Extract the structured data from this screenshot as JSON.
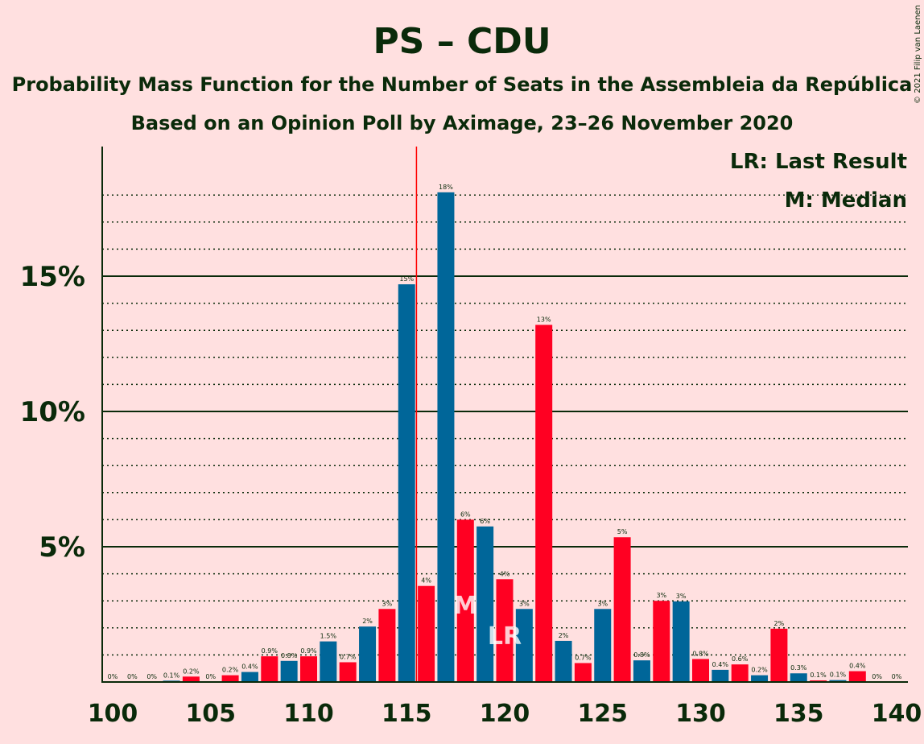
{
  "title": "PS – CDU",
  "subtitle1": "Probability Mass Function for the Number of Seats in the Assembleia da República",
  "subtitle2": "Based on an Opinion Poll by Aximage, 23–26 November 2020",
  "copyright": "© 2021 Filip van Laenen",
  "legend": {
    "lr": "LR: Last Result",
    "m": "M: Median"
  },
  "colors": {
    "background": "#ffe0e0",
    "blue": "#006699",
    "red": "#ff0022",
    "text": "#0a2a0a",
    "last_result_line": "#ff0000"
  },
  "markers": {
    "median_seat": 118,
    "median_label": "M",
    "last_result_seat": 120,
    "last_result_label": "LR",
    "last_result_line_x": 115.5
  },
  "chart_data": {
    "type": "bar",
    "xlabel": "",
    "ylabel": "",
    "xlim": [
      100,
      140
    ],
    "ylim": [
      0,
      19.5
    ],
    "x_ticks": [
      100,
      105,
      110,
      115,
      120,
      125,
      130,
      135,
      140
    ],
    "y_ticks": [
      {
        "value": 5,
        "label": "5%"
      },
      {
        "value": 10,
        "label": "10%"
      },
      {
        "value": 15,
        "label": "15%"
      }
    ],
    "minor_gridlines": [
      1,
      2,
      3,
      4,
      6,
      7,
      8,
      9,
      11,
      12,
      13,
      14,
      16,
      17,
      18
    ],
    "bars": [
      {
        "seats": 100,
        "value": 0.0,
        "label": "0%"
      },
      {
        "seats": 101,
        "value": 0.0,
        "label": "0%"
      },
      {
        "seats": 102,
        "value": 0.0,
        "label": "0%"
      },
      {
        "seats": 103,
        "value": 0.05,
        "label": "0.1%"
      },
      {
        "seats": 104,
        "value": 0.2,
        "label": "0.2%"
      },
      {
        "seats": 105,
        "value": 0.0,
        "label": "0%"
      },
      {
        "seats": 106,
        "value": 0.25,
        "label": "0.2%"
      },
      {
        "seats": 107,
        "value": 0.37,
        "label": "0.4%"
      },
      {
        "seats": 108,
        "value": 0.95,
        "label": "0.9%"
      },
      {
        "seats": 109,
        "value": 0.78,
        "label": "0.8%"
      },
      {
        "seats": 110,
        "value": 0.95,
        "label": "0.9%"
      },
      {
        "seats": 111,
        "value": 1.5,
        "label": "1.5%"
      },
      {
        "seats": 112,
        "value": 0.73,
        "label": "0.7%"
      },
      {
        "seats": 113,
        "value": 2.05,
        "label": "2%"
      },
      {
        "seats": 114,
        "value": 2.7,
        "label": "3%"
      },
      {
        "seats": 115,
        "value": 14.7,
        "label": "15%"
      },
      {
        "seats": 116,
        "value": 3.55,
        "label": "4%"
      },
      {
        "seats": 117,
        "value": 18.1,
        "label": "18%"
      },
      {
        "seats": 118,
        "value": 6.0,
        "label": "6%"
      },
      {
        "seats": 119,
        "value": 5.75,
        "label": "6%"
      },
      {
        "seats": 120,
        "value": 3.8,
        "label": "4%"
      },
      {
        "seats": 121,
        "value": 2.7,
        "label": "3%"
      },
      {
        "seats": 122,
        "value": 13.2,
        "label": "13%"
      },
      {
        "seats": 123,
        "value": 1.52,
        "label": "2%"
      },
      {
        "seats": 124,
        "value": 0.7,
        "label": "0.7%"
      },
      {
        "seats": 125,
        "value": 2.7,
        "label": "3%"
      },
      {
        "seats": 126,
        "value": 5.35,
        "label": "5%"
      },
      {
        "seats": 127,
        "value": 0.8,
        "label": "0.8%"
      },
      {
        "seats": 128,
        "value": 3.0,
        "label": "3%"
      },
      {
        "seats": 129,
        "value": 2.98,
        "label": "3%"
      },
      {
        "seats": 130,
        "value": 0.85,
        "label": "0.8%"
      },
      {
        "seats": 131,
        "value": 0.45,
        "label": "0.4%"
      },
      {
        "seats": 132,
        "value": 0.65,
        "label": "0.6%"
      },
      {
        "seats": 133,
        "value": 0.25,
        "label": "0.2%"
      },
      {
        "seats": 134,
        "value": 1.97,
        "label": "2%"
      },
      {
        "seats": 135,
        "value": 0.32,
        "label": "0.3%"
      },
      {
        "seats": 136,
        "value": 0.06,
        "label": "0.1%"
      },
      {
        "seats": 137,
        "value": 0.07,
        "label": "0.1%"
      },
      {
        "seats": 138,
        "value": 0.4,
        "label": "0.4%"
      },
      {
        "seats": 139,
        "value": 0.0,
        "label": "0%"
      },
      {
        "seats": 140,
        "value": 0.0,
        "label": "0%"
      }
    ]
  }
}
